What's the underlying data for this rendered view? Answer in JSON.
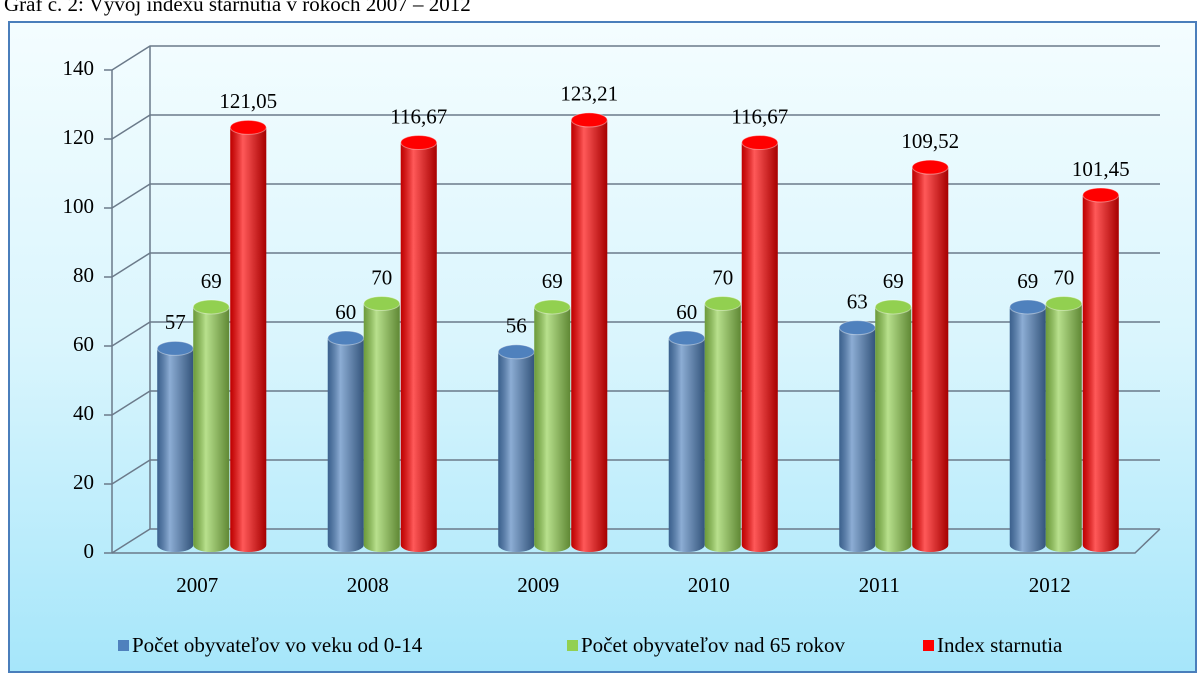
{
  "chart_data": {
    "type": "bar3d",
    "title": "Graf č. 2: Vývoj indexu starnutia v rokoch 2007 – 2012",
    "categories": [
      "2007",
      "2008",
      "2009",
      "2010",
      "2011",
      "2012"
    ],
    "series": [
      {
        "name": "Počet obyvateľov vo veku od 0-14",
        "color": "#4f81bd",
        "values": [
          57,
          60,
          56,
          60,
          63,
          69
        ]
      },
      {
        "name": "Počet obyvateľov nad 65 rokov",
        "color": "#92d050",
        "values": [
          69,
          70,
          69,
          70,
          69,
          70
        ]
      },
      {
        "name": "Index starnutia",
        "color": "#ff0000",
        "values": [
          121.05,
          116.67,
          123.21,
          116.67,
          109.52,
          101.45
        ],
        "value_labels": [
          "121,05",
          "116,67",
          "123,21",
          "116,67",
          "109,52",
          "101,45"
        ]
      }
    ],
    "ylim": [
      0,
      140
    ],
    "yticks": [
      0,
      20,
      40,
      60,
      80,
      100,
      120,
      140
    ],
    "grid": true,
    "legend": "bottom"
  }
}
